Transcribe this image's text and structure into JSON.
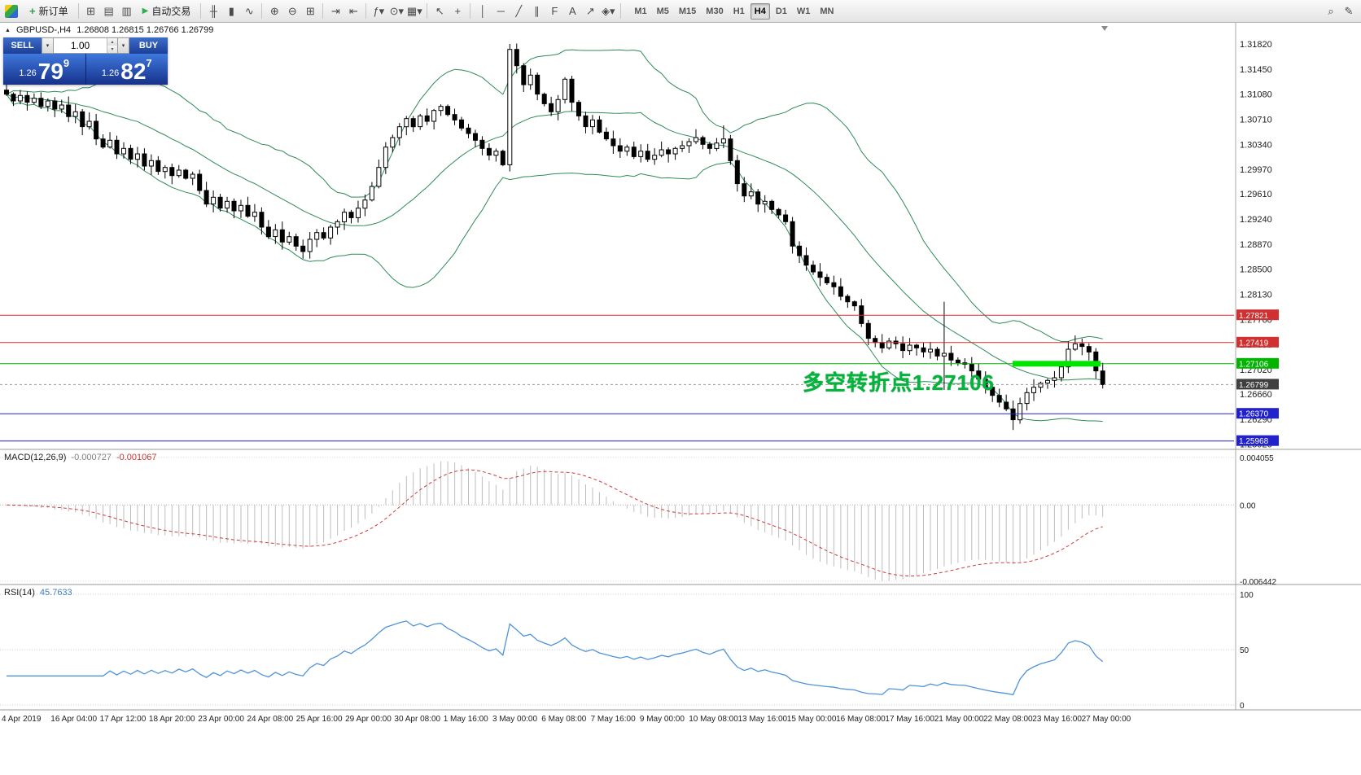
{
  "toolbar": {
    "new_order_label": "新订单",
    "auto_trading_label": "自动交易",
    "icons_a": [
      {
        "name": "market-watch-icon",
        "glyph": "⊞"
      },
      {
        "name": "navigator-icon",
        "glyph": "▤"
      },
      {
        "name": "terminal-icon",
        "glyph": "▥"
      }
    ],
    "icon_groups": [
      [
        {
          "name": "bar-chart-icon",
          "glyph": "╫"
        },
        {
          "name": "candlestick-chart-icon",
          "glyph": "▮"
        },
        {
          "name": "line-chart-icon",
          "glyph": "∿"
        }
      ],
      [
        {
          "name": "zoom-in-icon",
          "glyph": "⊕"
        },
        {
          "name": "zoom-out-icon",
          "glyph": "⊖"
        },
        {
          "name": "tile-windows-icon",
          "glyph": "⊞"
        }
      ],
      [
        {
          "name": "auto-scroll-icon",
          "glyph": "⇥"
        },
        {
          "name": "chart-shift-icon",
          "glyph": "⇤"
        }
      ],
      [
        {
          "name": "indicators-icon",
          "glyph": "ƒ▾"
        },
        {
          "name": "periods-menu-icon",
          "glyph": "⊙▾"
        },
        {
          "name": "templates-icon",
          "glyph": "▦▾"
        }
      ],
      [
        {
          "name": "cursor-icon",
          "glyph": "↖"
        },
        {
          "name": "crosshair-icon",
          "glyph": "+"
        }
      ],
      [
        {
          "name": "vertical-line-icon",
          "glyph": "│"
        },
        {
          "name": "horizontal-line-icon",
          "glyph": "─"
        },
        {
          "name": "trendline-icon",
          "glyph": "╱"
        },
        {
          "name": "channel-icon",
          "glyph": "∥"
        },
        {
          "name": "fibonacci-icon",
          "glyph": "F"
        },
        {
          "name": "text-tool-icon",
          "glyph": "A"
        },
        {
          "name": "arrow-tool-icon",
          "glyph": "↗"
        },
        {
          "name": "shapes-icon",
          "glyph": "◈▾"
        }
      ]
    ],
    "timeframes": [
      "M1",
      "M5",
      "M15",
      "M30",
      "H1",
      "H4",
      "D1",
      "W1",
      "MN"
    ],
    "active_timeframe": "H4",
    "right_icons": [
      {
        "name": "quick-search-icon",
        "glyph": "⌕"
      },
      {
        "name": "edit-icon",
        "glyph": "✎"
      }
    ]
  },
  "chart_header": {
    "collapse_icon": "▲",
    "symbol": "GBPUSD-,H4",
    "ohlc": "1.26808 1.26815 1.26766 1.26799"
  },
  "trade_panel": {
    "sell_label": "SELL",
    "buy_label": "BUY",
    "volume": "1.00",
    "sell_price": {
      "prefix": "1.26",
      "big": "79",
      "sup": "9"
    },
    "buy_price": {
      "prefix": "1.26",
      "big": "82",
      "sup": "7"
    }
  },
  "annotation": {
    "text": "多空转折点1.27106",
    "color": "#00b43c"
  },
  "levels": [
    {
      "price": "1.27821",
      "value": 1.27821,
      "color": "#d03030",
      "type": "resistance"
    },
    {
      "price": "1.27419",
      "value": 1.27419,
      "color": "#d03030",
      "type": "resistance"
    },
    {
      "price": "1.27106",
      "value": 1.27106,
      "color": "#00b400",
      "type": "pivot",
      "highlight": true
    },
    {
      "price": "1.26799",
      "value": 1.26799,
      "color": "#3f3f3f",
      "type": "current"
    },
    {
      "price": "1.26370",
      "value": 1.2637,
      "color": "#2222cc",
      "type": "support"
    },
    {
      "price": "1.25968",
      "value": 1.25968,
      "color": "#2222cc",
      "type": "support"
    }
  ],
  "price_scale": [
    "1.31820",
    "1.31450",
    "1.31080",
    "1.30710",
    "1.30340",
    "1.29970",
    "1.29610",
    "1.29240",
    "1.28870",
    "1.28500",
    "1.28130",
    "1.27760",
    "1.27390",
    "1.27020",
    "1.26660",
    "1.26290",
    "1.25920"
  ],
  "indicators": {
    "macd": {
      "label": "MACD(12,26,9)",
      "value_main": "-0.000727",
      "value_signal": "-0.001067",
      "scale_max": "0.004055",
      "scale_mid": "0.00",
      "scale_min": "-0.006442"
    },
    "rsi": {
      "label": "RSI(14)",
      "value": "45.7633",
      "scale": [
        "100",
        "50",
        "0"
      ]
    }
  },
  "time_axis": [
    "4 Apr 2019",
    "16 Apr 04:00",
    "17 Apr 12:00",
    "18 Apr 20:00",
    "23 Apr 00:00",
    "24 Apr 08:00",
    "25 Apr 16:00",
    "29 Apr 00:00",
    "30 Apr 08:00",
    "1 May 16:00",
    "3 May 00:00",
    "6 May 08:00",
    "7 May 16:00",
    "9 May 00:00",
    "10 May 08:00",
    "13 May 16:00",
    "15 May 00:00",
    "16 May 08:00",
    "17 May 16:00",
    "21 May 00:00",
    "22 May 08:00",
    "23 May 16:00",
    "27 May 00:00"
  ],
  "chart_data": {
    "type": "candlestick",
    "symbol": "GBPUSD",
    "timeframe": "H4",
    "title": "GBPUSD-,H4",
    "ylim": [
      1.2589,
      1.3213
    ],
    "current_price": 1.26799,
    "levels": [
      1.27821,
      1.27419,
      1.27106,
      1.2637,
      1.25968
    ],
    "overlays": [
      {
        "name": "Bollinger Bands",
        "period": 20,
        "deviation": 2,
        "color": "#2e8b57"
      }
    ],
    "sub_indicators": [
      {
        "name": "MACD",
        "params": [
          12,
          26,
          9
        ],
        "values": [
          -0.000727,
          -0.001067
        ]
      },
      {
        "name": "RSI",
        "params": [
          14
        ],
        "value": 45.7633
      }
    ],
    "closes": [
      1.3108,
      1.3098,
      1.3106,
      1.3096,
      1.3102,
      1.309,
      1.3098,
      1.3086,
      1.3092,
      1.3075,
      1.3082,
      1.306,
      1.3068,
      1.3042,
      1.303,
      1.304,
      1.302,
      1.3028,
      1.3012,
      1.302,
      1.3002,
      1.301,
      1.2994,
      1.3,
      1.2988,
      1.2996,
      1.2984,
      1.299,
      1.2966,
      1.2946,
      1.2956,
      1.294,
      1.295,
      1.2936,
      1.2944,
      1.2928,
      1.2934,
      1.2912,
      1.2898,
      1.2908,
      1.289,
      1.2898,
      1.2884,
      1.2876,
      1.2894,
      1.2904,
      1.2896,
      1.2912,
      1.292,
      1.2934,
      1.2926,
      1.294,
      1.2952,
      1.2972,
      1.3,
      1.303,
      1.3044,
      1.306,
      1.3072,
      1.306,
      1.3076,
      1.3068,
      1.3084,
      1.309,
      1.3078,
      1.307,
      1.3058,
      1.305,
      1.304,
      1.3028,
      1.3018,
      1.3024,
      1.3004,
      1.3174,
      1.315,
      1.3122,
      1.3136,
      1.3108,
      1.3094,
      1.3082,
      1.31,
      1.313,
      1.3096,
      1.3076,
      1.306,
      1.307,
      1.3052,
      1.3042,
      1.3032,
      1.3024,
      1.303,
      1.3016,
      1.3024,
      1.3012,
      1.3018,
      1.3026,
      1.302,
      1.3028,
      1.3032,
      1.3038,
      1.3044,
      1.3034,
      1.3028,
      1.3036,
      1.3042,
      1.301,
      1.2976,
      1.2958,
      1.2964,
      1.2946,
      1.295,
      1.2938,
      1.293,
      1.292,
      1.2884,
      1.287,
      1.2856,
      1.2846,
      1.2838,
      1.283,
      1.2824,
      1.281,
      1.2802,
      1.2796,
      1.277,
      1.2748,
      1.2742,
      1.2734,
      1.2744,
      1.274,
      1.273,
      1.2738,
      1.2734,
      1.2728,
      1.2732,
      1.2722,
      1.2726,
      1.2716,
      1.2712,
      1.271,
      1.27,
      1.2688,
      1.2676,
      1.2664,
      1.2654,
      1.2644,
      1.2628,
      1.2652,
      1.2668,
      1.2676,
      1.2682,
      1.2686,
      1.269,
      1.2706,
      1.2732,
      1.274,
      1.2736,
      1.2728,
      1.27,
      1.26799
    ],
    "spikes": {
      "73": {
        "h": 1.3182
      },
      "104": {
        "h": 1.3062
      },
      "136": {
        "h": 1.2802,
        "l": 1.2672
      },
      "146": {
        "l": 1.2613
      }
    }
  }
}
